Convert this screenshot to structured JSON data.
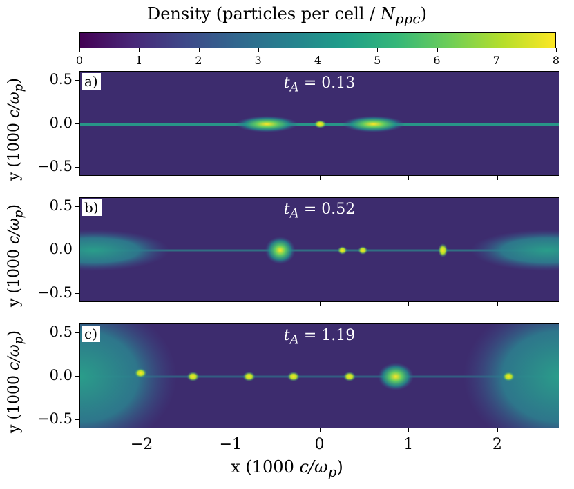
{
  "colorbar": {
    "title_prefix": "Density (particles per cell / ",
    "title_var": "N",
    "title_sub": "ppc",
    "title_suffix": ")",
    "ticks": [
      "0",
      "1",
      "2",
      "3",
      "4",
      "5",
      "6",
      "7",
      "8"
    ],
    "colormap": [
      "#440154",
      "#482878",
      "#3e4989",
      "#31688e",
      "#26828e",
      "#1f9e89",
      "#35b779",
      "#6ece58",
      "#b5de2b",
      "#fde725"
    ]
  },
  "chart_data": {
    "type": "heatmap",
    "colorbar_label": "Density (particles per cell / N_ppc)",
    "colorbar_range": [
      0,
      8
    ],
    "xlabel": "x (1000 c/ω_p)",
    "ylabel": "y (1000 c/ω_p)",
    "xlim": [
      -2.7,
      2.7
    ],
    "ylim": [
      -0.6,
      0.6
    ],
    "xticks": [
      "−2",
      "−1",
      "0",
      "1",
      "2"
    ],
    "yticks": [
      "0.5",
      "0.0",
      "−0.5"
    ],
    "panels": [
      {
        "label": "a)",
        "time_label": "t_A = 0.13",
        "time_value": 0.13
      },
      {
        "label": "b)",
        "time_label": "t_A = 0.52",
        "time_value": 0.52
      },
      {
        "label": "c)",
        "time_label": "t_A = 1.19",
        "time_value": 1.19
      }
    ]
  },
  "axes": {
    "ylabel_text": "y (1000 ",
    "xlabel_text": "x (1000 ",
    "unit_italic": "c/ω",
    "unit_sub": "p",
    "unit_close": ")",
    "tA_prefix": "t",
    "tA_sub": "A",
    "tA_values": [
      "= 0.13",
      "= 0.52",
      "= 1.19"
    ]
  }
}
